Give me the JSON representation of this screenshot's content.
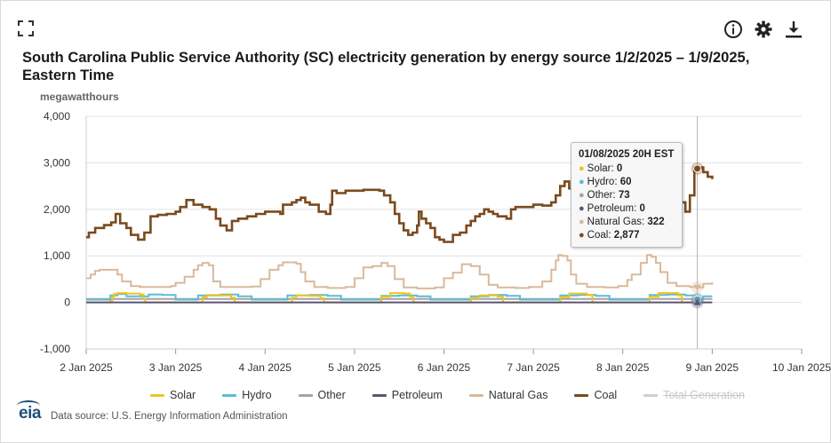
{
  "toolbar": {
    "expand_icon": "expand-icon",
    "info_icon": "info-icon",
    "settings_icon": "gear-icon",
    "download_icon": "download-icon"
  },
  "chart_data": {
    "type": "line",
    "title": "South Carolina Public Service Authority (SC) electricity generation by energy source 1/2/2025 – 1/9/2025, Eastern Time",
    "ylabel": "megawatthours",
    "xlabel": "",
    "ylim": [
      -1000,
      4000
    ],
    "yticks": [
      -1000,
      0,
      1000,
      2000,
      3000,
      4000
    ],
    "ytick_labels": [
      "-1,000",
      "0",
      "1,000",
      "2,000",
      "3,000",
      "4,000"
    ],
    "xlim_days": [
      0,
      8
    ],
    "xticks": [
      0,
      1,
      2,
      3,
      4,
      5,
      6,
      7,
      8
    ],
    "xtick_labels": [
      "2 Jan 2025",
      "3 Jan 2025",
      "4 Jan 2025",
      "5 Jan 2025",
      "6 Jan 2025",
      "7 Jan 2025",
      "8 Jan 2025",
      "9 Jan 2025",
      "10 Jan 2025"
    ],
    "grid": true,
    "crosshair_day": 6.833,
    "series": [
      {
        "name": "Solar",
        "color": "#f0c419",
        "hidden": false,
        "points": [
          [
            0,
            0
          ],
          [
            0.25,
            0
          ],
          [
            0.27,
            30
          ],
          [
            0.29,
            120
          ],
          [
            0.31,
            180
          ],
          [
            0.35,
            200
          ],
          [
            0.45,
            190
          ],
          [
            0.6,
            170
          ],
          [
            0.64,
            80
          ],
          [
            0.66,
            0
          ],
          [
            1.27,
            0
          ],
          [
            1.3,
            110
          ],
          [
            1.35,
            160
          ],
          [
            1.5,
            150
          ],
          [
            1.62,
            100
          ],
          [
            1.66,
            0
          ],
          [
            2.27,
            0
          ],
          [
            2.3,
            100
          ],
          [
            2.35,
            150
          ],
          [
            2.5,
            140
          ],
          [
            2.62,
            90
          ],
          [
            2.66,
            0
          ],
          [
            3.27,
            0
          ],
          [
            3.3,
            120
          ],
          [
            3.4,
            200
          ],
          [
            3.55,
            190
          ],
          [
            3.62,
            120
          ],
          [
            3.66,
            0
          ],
          [
            4.27,
            0
          ],
          [
            4.3,
            90
          ],
          [
            4.4,
            150
          ],
          [
            4.6,
            120
          ],
          [
            4.66,
            0
          ],
          [
            5.27,
            0
          ],
          [
            5.3,
            110
          ],
          [
            5.4,
            190
          ],
          [
            5.6,
            160
          ],
          [
            5.66,
            0
          ],
          [
            6.27,
            0
          ],
          [
            6.3,
            120
          ],
          [
            6.4,
            200
          ],
          [
            6.62,
            150
          ],
          [
            6.66,
            0
          ],
          [
            6.85,
            0
          ],
          [
            6.9,
            0
          ]
        ]
      },
      {
        "name": "Hydro",
        "color": "#5bbcd6",
        "hidden": false,
        "points": [
          [
            0,
            60
          ],
          [
            0.25,
            60
          ],
          [
            0.27,
            150
          ],
          [
            0.35,
            180
          ],
          [
            0.45,
            130
          ],
          [
            0.7,
            170
          ],
          [
            0.85,
            160
          ],
          [
            1.0,
            60
          ],
          [
            1.2,
            60
          ],
          [
            1.25,
            150
          ],
          [
            1.5,
            170
          ],
          [
            1.7,
            130
          ],
          [
            1.85,
            60
          ],
          [
            2.2,
            60
          ],
          [
            2.25,
            150
          ],
          [
            2.5,
            160
          ],
          [
            2.7,
            140
          ],
          [
            2.85,
            60
          ],
          [
            3.2,
            60
          ],
          [
            3.3,
            140
          ],
          [
            3.5,
            150
          ],
          [
            3.7,
            130
          ],
          [
            3.85,
            60
          ],
          [
            4.2,
            60
          ],
          [
            4.3,
            130
          ],
          [
            4.5,
            160
          ],
          [
            4.7,
            140
          ],
          [
            4.85,
            60
          ],
          [
            5.2,
            60
          ],
          [
            5.3,
            150
          ],
          [
            5.5,
            160
          ],
          [
            5.7,
            140
          ],
          [
            5.85,
            60
          ],
          [
            6.2,
            60
          ],
          [
            6.3,
            160
          ],
          [
            6.5,
            170
          ],
          [
            6.7,
            150
          ],
          [
            6.85,
            60
          ],
          [
            6.9,
            130
          ],
          [
            7.0,
            130
          ]
        ]
      },
      {
        "name": "Other",
        "color": "#a3a3a3",
        "hidden": false,
        "points": [
          [
            0,
            73
          ],
          [
            1,
            73
          ],
          [
            2,
            73
          ],
          [
            3,
            73
          ],
          [
            4,
            73
          ],
          [
            5,
            73
          ],
          [
            6,
            73
          ],
          [
            6.85,
            73
          ],
          [
            7.0,
            73
          ]
        ]
      },
      {
        "name": "Petroleum",
        "color": "#5a5475",
        "hidden": false,
        "points": [
          [
            0,
            0
          ],
          [
            7.0,
            0
          ]
        ]
      },
      {
        "name": "Natural Gas",
        "color": "#d9b99b",
        "hidden": false,
        "points": [
          [
            0,
            520
          ],
          [
            0.05,
            600
          ],
          [
            0.1,
            680
          ],
          [
            0.15,
            700
          ],
          [
            0.3,
            700
          ],
          [
            0.35,
            600
          ],
          [
            0.4,
            450
          ],
          [
            0.5,
            350
          ],
          [
            0.6,
            330
          ],
          [
            0.7,
            330
          ],
          [
            0.85,
            330
          ],
          [
            0.95,
            350
          ],
          [
            1.0,
            420
          ],
          [
            1.1,
            550
          ],
          [
            1.2,
            700
          ],
          [
            1.25,
            800
          ],
          [
            1.3,
            850
          ],
          [
            1.37,
            800
          ],
          [
            1.42,
            450
          ],
          [
            1.5,
            330
          ],
          [
            1.7,
            330
          ],
          [
            1.85,
            340
          ],
          [
            1.95,
            500
          ],
          [
            2.05,
            700
          ],
          [
            2.15,
            800
          ],
          [
            2.2,
            860
          ],
          [
            2.35,
            830
          ],
          [
            2.4,
            650
          ],
          [
            2.45,
            450
          ],
          [
            2.55,
            330
          ],
          [
            2.7,
            310
          ],
          [
            2.9,
            330
          ],
          [
            3.0,
            520
          ],
          [
            3.1,
            750
          ],
          [
            3.2,
            780
          ],
          [
            3.3,
            850
          ],
          [
            3.37,
            780
          ],
          [
            3.45,
            500
          ],
          [
            3.55,
            320
          ],
          [
            3.7,
            300
          ],
          [
            3.9,
            320
          ],
          [
            4.0,
            520
          ],
          [
            4.1,
            640
          ],
          [
            4.2,
            820
          ],
          [
            4.3,
            780
          ],
          [
            4.4,
            600
          ],
          [
            4.5,
            380
          ],
          [
            4.6,
            320
          ],
          [
            4.8,
            310
          ],
          [
            4.95,
            330
          ],
          [
            5.1,
            450
          ],
          [
            5.2,
            700
          ],
          [
            5.25,
            900
          ],
          [
            5.28,
            1020
          ],
          [
            5.32,
            1000
          ],
          [
            5.38,
            900
          ],
          [
            5.42,
            600
          ],
          [
            5.48,
            400
          ],
          [
            5.6,
            330
          ],
          [
            5.8,
            320
          ],
          [
            5.95,
            350
          ],
          [
            6.05,
            480
          ],
          [
            6.1,
            600
          ],
          [
            6.2,
            850
          ],
          [
            6.27,
            1020
          ],
          [
            6.32,
            980
          ],
          [
            6.37,
            850
          ],
          [
            6.42,
            650
          ],
          [
            6.5,
            420
          ],
          [
            6.6,
            350
          ],
          [
            6.75,
            330
          ],
          [
            6.833,
            322
          ],
          [
            6.9,
            400
          ],
          [
            7.0,
            430
          ]
        ]
      },
      {
        "name": "Coal",
        "color": "#7a4a1e",
        "hidden": false,
        "points": [
          [
            0,
            1400
          ],
          [
            0.03,
            1500
          ],
          [
            0.1,
            1600
          ],
          [
            0.2,
            1660
          ],
          [
            0.28,
            1720
          ],
          [
            0.33,
            1900
          ],
          [
            0.38,
            1700
          ],
          [
            0.45,
            1600
          ],
          [
            0.5,
            1450
          ],
          [
            0.58,
            1350
          ],
          [
            0.65,
            1500
          ],
          [
            0.72,
            1850
          ],
          [
            0.8,
            1880
          ],
          [
            0.9,
            1900
          ],
          [
            1.0,
            1950
          ],
          [
            1.05,
            2050
          ],
          [
            1.12,
            2200
          ],
          [
            1.2,
            2100
          ],
          [
            1.3,
            2050
          ],
          [
            1.38,
            2000
          ],
          [
            1.45,
            1800
          ],
          [
            1.5,
            1650
          ],
          [
            1.57,
            1550
          ],
          [
            1.63,
            1750
          ],
          [
            1.7,
            1800
          ],
          [
            1.8,
            1850
          ],
          [
            1.9,
            1900
          ],
          [
            2.0,
            1950
          ],
          [
            2.1,
            1950
          ],
          [
            2.17,
            1900
          ],
          [
            2.2,
            2100
          ],
          [
            2.3,
            2150
          ],
          [
            2.35,
            2200
          ],
          [
            2.4,
            2250
          ],
          [
            2.45,
            2150
          ],
          [
            2.5,
            2100
          ],
          [
            2.6,
            1950
          ],
          [
            2.68,
            1900
          ],
          [
            2.73,
            2100
          ],
          [
            2.75,
            2400
          ],
          [
            2.8,
            2350
          ],
          [
            2.9,
            2400
          ],
          [
            3.0,
            2400
          ],
          [
            3.1,
            2420
          ],
          [
            3.2,
            2420
          ],
          [
            3.28,
            2400
          ],
          [
            3.33,
            2300
          ],
          [
            3.4,
            2150
          ],
          [
            3.45,
            1900
          ],
          [
            3.5,
            1700
          ],
          [
            3.55,
            1550
          ],
          [
            3.6,
            1450
          ],
          [
            3.65,
            1500
          ],
          [
            3.7,
            1650
          ],
          [
            3.72,
            1950
          ],
          [
            3.75,
            1800
          ],
          [
            3.8,
            1700
          ],
          [
            3.85,
            1600
          ],
          [
            3.9,
            1400
          ],
          [
            3.95,
            1350
          ],
          [
            4.0,
            1300
          ],
          [
            4.1,
            1450
          ],
          [
            4.18,
            1500
          ],
          [
            4.25,
            1650
          ],
          [
            4.3,
            1750
          ],
          [
            4.35,
            1850
          ],
          [
            4.4,
            1900
          ],
          [
            4.45,
            2000
          ],
          [
            4.5,
            1950
          ],
          [
            4.55,
            1900
          ],
          [
            4.6,
            1850
          ],
          [
            4.7,
            1800
          ],
          [
            4.75,
            2000
          ],
          [
            4.8,
            2050
          ],
          [
            4.9,
            2050
          ],
          [
            5.0,
            2100
          ],
          [
            5.1,
            2080
          ],
          [
            5.2,
            2150
          ],
          [
            5.25,
            2300
          ],
          [
            5.3,
            2500
          ],
          [
            5.35,
            2600
          ],
          [
            5.4,
            2450
          ],
          [
            5.45,
            2300
          ],
          [
            5.5,
            2100
          ],
          [
            5.6,
            2150
          ],
          [
            5.7,
            2300
          ],
          [
            5.8,
            2400
          ],
          [
            5.9,
            2350
          ],
          [
            6.0,
            2300
          ],
          [
            6.1,
            2250
          ],
          [
            6.2,
            2400
          ],
          [
            6.3,
            2500
          ],
          [
            6.35,
            2650
          ],
          [
            6.4,
            2550
          ],
          [
            6.5,
            2300
          ],
          [
            6.6,
            2150
          ],
          [
            6.7,
            1950
          ],
          [
            6.75,
            2300
          ],
          [
            6.8,
            2900
          ],
          [
            6.833,
            2877
          ],
          [
            6.87,
            2900
          ],
          [
            6.9,
            2800
          ],
          [
            6.95,
            2700
          ],
          [
            7.0,
            2650
          ]
        ]
      },
      {
        "name": "Total Generation",
        "color": "#cfcfcf",
        "hidden": true,
        "points": []
      }
    ]
  },
  "tooltip": {
    "header": "01/08/2025 20H EST",
    "rows": [
      {
        "label": "Solar",
        "value": "0",
        "color": "#f0c419"
      },
      {
        "label": "Hydro",
        "value": "60",
        "color": "#5bbcd6"
      },
      {
        "label": "Other",
        "value": "73",
        "color": "#a3a3a3"
      },
      {
        "label": "Petroleum",
        "value": "0",
        "color": "#5a5475"
      },
      {
        "label": "Natural Gas",
        "value": "322",
        "color": "#d9b99b"
      },
      {
        "label": "Coal",
        "value": "2,877",
        "color": "#7a4a1e"
      }
    ]
  },
  "legend": [
    {
      "label": "Solar",
      "color": "#f0c419",
      "hidden": false
    },
    {
      "label": "Hydro",
      "color": "#5bbcd6",
      "hidden": false
    },
    {
      "label": "Other",
      "color": "#a3a3a3",
      "hidden": false
    },
    {
      "label": "Petroleum",
      "color": "#5a5475",
      "hidden": false
    },
    {
      "label": "Natural Gas",
      "color": "#d9b99b",
      "hidden": false
    },
    {
      "label": "Coal",
      "color": "#7a4a1e",
      "hidden": false
    },
    {
      "label": "Total Generation",
      "color": "#cfcfcf",
      "hidden": true
    }
  ],
  "footer": {
    "logo_text": "eia",
    "source_text": "Data source: U.S. Energy Information Administration"
  }
}
